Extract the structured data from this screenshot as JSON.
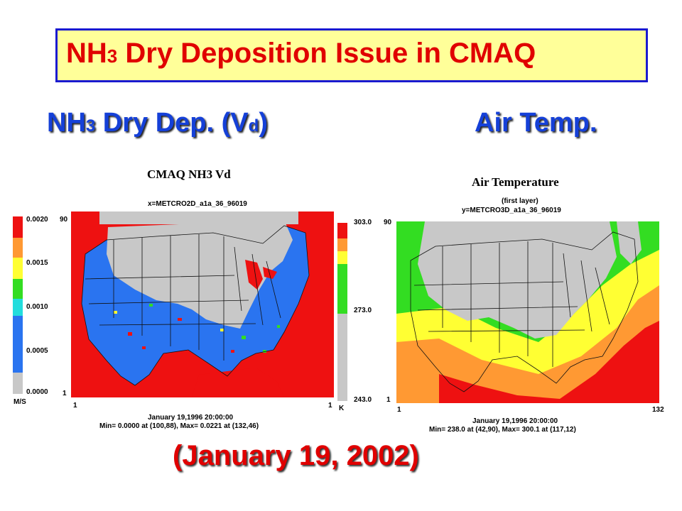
{
  "title": {
    "part1": "NH",
    "sub": "3",
    "part2": " Dry Deposition Issue in CMAQ"
  },
  "left_header": {
    "part1": "NH",
    "sub1": "3",
    "part2": " Dry Dep. (V",
    "sub2": "d",
    "part3": ")"
  },
  "right_header": "Air Temp.",
  "left_map": {
    "title": "CMAQ NH3 Vd",
    "file": "x=METCRO2D_a1a_36_96019",
    "legend_ticks": [
      "0.0020",
      "0.0015",
      "0.0010",
      "0.0005",
      "0.0000"
    ],
    "unit": "M/S",
    "y_top": "90",
    "y_bottom": "1",
    "x_left": "1",
    "x_right": "1",
    "date": "January 19,1996 20:00:00",
    "minmax": "Min=  0.0000 at (100,88), Max=  0.0221 at (132,46)"
  },
  "right_map": {
    "title": "Air Temperature",
    "layer": "(first layer)",
    "file": "y=METCRO3D_a1a_36_96019",
    "legend_ticks": [
      "303.0",
      "273.0",
      "243.0"
    ],
    "unit": "K",
    "y_top": "90",
    "y_bottom": "1",
    "x_left": "1",
    "x_right": "132",
    "date": "January 19,1996 20:00:00",
    "minmax": "Min=  238.0 at (42,90), Max=  300.1 at (117,12)"
  },
  "caption": "(January 19, 2002)",
  "colors": {
    "title_bg": "#ffff99",
    "title_border": "#1a1ad0",
    "title_text": "#e00000",
    "header_text": "#1540d8",
    "land_gray": "#c8c8c8",
    "red": "#ee1111",
    "blue": "#2a74f0",
    "green": "#33dd22",
    "yellow": "#ffff33",
    "orange": "#ff9933"
  }
}
